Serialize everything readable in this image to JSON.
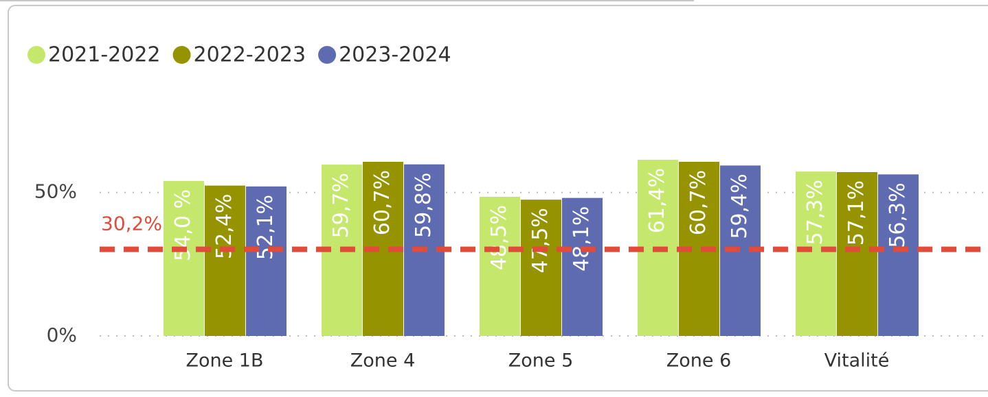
{
  "chart_data": {
    "type": "bar",
    "categories": [
      "Zone 1B",
      "Zone 4",
      "Zone 5",
      "Zone 6",
      "Vitalité"
    ],
    "series": [
      {
        "name": "2021-2022",
        "color": "#c5e86c",
        "values": [
          54.0,
          59.7,
          48.5,
          61.4,
          57.3
        ],
        "value_labels": [
          "54,0 %",
          "59,7%",
          "48,5%",
          "61,4%",
          "57,3%"
        ]
      },
      {
        "name": "2022-2023",
        "color": "#959400",
        "values": [
          52.4,
          60.7,
          47.5,
          60.7,
          57.1
        ],
        "value_labels": [
          "52,4%",
          "60,7%",
          "47,5%",
          "60,7%",
          "57,1%"
        ]
      },
      {
        "name": "2023-2024",
        "color": "#5f6bb0",
        "values": [
          52.1,
          59.8,
          48.1,
          59.4,
          56.3
        ],
        "value_labels": [
          "52,1%",
          "59,8%",
          "48,1%",
          "59,4%",
          "56,3%"
        ]
      }
    ],
    "ylim": [
      0,
      70
    ],
    "yticks": [
      {
        "value": 0,
        "label": "0%"
      },
      {
        "value": 50,
        "label": "50%"
      }
    ],
    "grid": true,
    "legend": "top",
    "reference_line": {
      "value": 30.2,
      "label": "30,2%",
      "color": "#e04b3a"
    }
  }
}
